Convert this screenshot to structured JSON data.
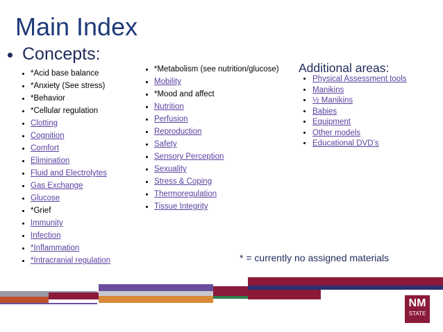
{
  "title": "Main Index",
  "concepts_heading": "Concepts:",
  "columns": [
    {
      "items": [
        {
          "text": "*Acid base balance",
          "link": false
        },
        {
          "text": "*Anxiety (See stress)",
          "link": false
        },
        {
          "text": "*Behavior",
          "link": false
        },
        {
          "text": "*Cellular regulation",
          "link": false
        },
        {
          "text": "Clotting",
          "link": true
        },
        {
          "text": "Cognition",
          "link": true
        },
        {
          "text": "Comfort",
          "link": true
        },
        {
          "text": "Elimination",
          "link": true
        },
        {
          "text": "Fluid and Electrolytes",
          "link": true
        },
        {
          "text": "Gas Exchange",
          "link": true
        },
        {
          "text": "Glucose",
          "link": true
        },
        {
          "text": "*Grief",
          "link": false
        },
        {
          "text": "Immunity",
          "link": true
        },
        {
          "text": "Infection",
          "link": true
        },
        {
          "text": "*Inflammation",
          "link": true
        },
        {
          "text": "*Intracranial regulation",
          "link": true
        }
      ]
    },
    {
      "items": [
        {
          "text": "*Metabolism (see nutrition/glucose)",
          "link": false
        },
        {
          "text": "Mobility",
          "link": true
        },
        {
          "text": "*Mood and affect",
          "link": false
        },
        {
          "text": "Nutrition",
          "link": true
        },
        {
          "text": "Perfusion",
          "link": true
        },
        {
          "text": "Reproduction",
          "link": true
        },
        {
          "text": "Safety",
          "link": true
        },
        {
          "text": "Sensory Perception",
          "link": true
        },
        {
          "text": "Sexuality",
          "link": true
        },
        {
          "text": "Stress & Coping",
          "link": true
        },
        {
          "text": "Thermoregulation",
          "link": true
        },
        {
          "text": "Tissue Integrity",
          "link": true
        }
      ]
    }
  ],
  "additional": {
    "heading": "Additional areas:",
    "items": [
      {
        "text": "Physical Assessment tools",
        "link": true
      },
      {
        "text": "Manikins",
        "link": true
      },
      {
        "text": "½ Manikins",
        "link": true
      },
      {
        "text": "Babies",
        "link": true
      },
      {
        "text": "Equipment",
        "link": true
      },
      {
        "text": "Other models",
        "link": true
      },
      {
        "text": "Educational DVD’s",
        "link": true
      }
    ]
  },
  "footnote": "* = currently no assigned materials",
  "logo": {
    "line1": "NM",
    "line2": "STATE"
  }
}
